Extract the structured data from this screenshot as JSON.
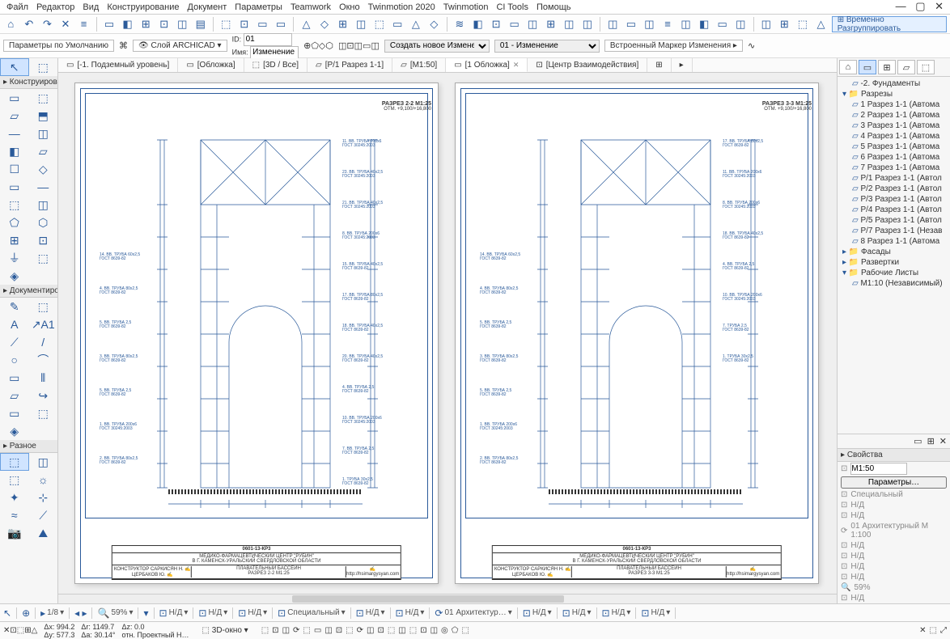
{
  "menu": [
    "Файл",
    "Редактор",
    "Вид",
    "Конструирование",
    "Документ",
    "Параметры",
    "Teamwork",
    "Окно",
    "Twinmotion 2020",
    "Twinmotion",
    "CI Tools",
    "Помощь"
  ],
  "toolbar1": {
    "icons": [
      "⌂",
      "↶",
      "↷",
      "✕",
      "≡",
      "▭",
      "◧",
      "⊞",
      "⊡",
      "◫",
      "▤",
      "⬚",
      "⊡",
      "▭",
      "▭",
      "△",
      "◇",
      "⊞",
      "◫",
      "⬚",
      "▭",
      "△",
      "◇",
      "≋",
      "◧",
      "⊡",
      "▭",
      "◫",
      "⊞",
      "◫",
      "◫",
      "◫",
      "▭",
      "◫",
      "≡",
      "◫",
      "◧",
      "▭",
      "◫",
      "◫",
      "⊞",
      "⬚",
      "△"
    ],
    "tempUngroup": "Временно Разгруппировать"
  },
  "infobox": {
    "defaults": "Параметры по Умолчанию",
    "layer_label": "Слой ARCHICAD",
    "id_label": "ID:",
    "id_value": "01",
    "name_label": "Имя:",
    "name_value": "Изменение",
    "shape_icons": [
      "⊕",
      "⬠",
      "◇",
      "⬡"
    ],
    "mid_icons": [
      "◫",
      "⊡",
      "◫",
      "▭",
      "◫"
    ],
    "change_select": "Создать новое Изменение",
    "change_value": "01 - Изменение",
    "marker_label": "Встроенный Маркер Изменения ▸",
    "tail_icon": "∿"
  },
  "toolbox": {
    "sections": [
      {
        "title": "",
        "cells": [
          "↖",
          "⬚"
        ]
      },
      {
        "title": "Конструирова",
        "cells": [
          "▭",
          "⬚",
          "▱",
          "⬒",
          "—",
          "◫",
          "◧",
          "▱",
          "☐",
          "◇",
          "▭",
          "—",
          "⬚",
          "◫",
          "⬠",
          "⬡",
          "⊞",
          "⊡",
          "⏚",
          "⬚",
          "◈",
          ""
        ]
      },
      {
        "title": "Документиро",
        "cells": [
          "✎",
          "⬚",
          "A",
          "↗A1",
          "⟋",
          "/",
          "○",
          "⌒",
          "▭",
          "⫴",
          "▱",
          "↪",
          "▭",
          "⬚",
          "◈",
          ""
        ]
      },
      {
        "title": "Разное",
        "cells": [
          "⬚",
          "◫",
          "⬚",
          "☼",
          "✦",
          "⊹",
          "≈",
          "⟋",
          "📷",
          "⛰"
        ]
      }
    ]
  },
  "tabs": [
    {
      "label": "[-1. Подземный уровень]",
      "icon": "▭"
    },
    {
      "label": "[Обложка]",
      "icon": "▭"
    },
    {
      "label": "[3D / Все]",
      "icon": "⬚"
    },
    {
      "label": "[Р/1 Разрез 1-1]",
      "icon": "▱"
    },
    {
      "label": "[М1:50]",
      "icon": "▱"
    },
    {
      "label": "[1 Обложка]",
      "icon": "▭",
      "active": true,
      "close": true
    },
    {
      "label": "[Центр Взаимодействия]",
      "icon": "⊡"
    }
  ],
  "tabsTail": [
    "⊞",
    "▸"
  ],
  "drawings": {
    "sheet1": {
      "title1": "РАЗРЕЗ 2-2 М1:25",
      "title2": "ОТМ. +9,100/+16,800",
      "titleblock": {
        "code": "0601-13-КР3",
        "line1": "МЕДИКО-ФАРМАЦЕВТИЧЕСКИЙ ЦЕНТР \"РУБИН\"",
        "line2": "В Г. КАМЕНСК-УРАЛЬСКИЙ СВЕРДЛОВСКОЙ ОБЛАСТИ",
        "line3": "ПЛАВАТЕЛЬНЫЙ БАССЕЙН",
        "line4": "РАЗРЕЗ 2-2 М1:25",
        "site": "http://hsimargysyan.com"
      },
      "labels_left": [
        "14. ВВ. ТРУБА 60x2,5 ГОСТ 8639-82",
        "4. ВВ. ТРУБА 80x2,5 ГОСТ 8639-82",
        "5. ВВ. ТРУБА 2,5 ГОСТ 8639-82",
        "3. ВВ. ТРУБА 80x2,5 ГОСТ 8639-82",
        "5. ВВ. ТРУБА 2,5 ГОСТ 8639-82",
        "1. ВВ. ТРУБА 200x6 ГОСТ 30245:2003",
        "2. ВВ. ТРУБА 80x2,5 ГОСТ 8639-82"
      ],
      "labels_right": [
        "11. ВВ. ТРУБА 200x6 ГОСТ 30245:2003",
        "23. ВВ. ТРУБА 40x2,5 ГОСТ 30245:2003",
        "21. ВВ. ТРУБА 40x2,5 ГОСТ 30245:2003",
        "8. ВВ. ТРУБА 200x6 ГОСТ 30245:2003",
        "15. ВВ. ТРУБА 40x2,5 ГОСТ 8639-82",
        "17. ВВ. ТРУБА 80x2,5 ГОСТ 8639-82",
        "18. ВВ. ТРУБА 40x2,5 ГОСТ 8639-82",
        "20. ВВ. ТРУБА 40x2,5 ГОСТ 8639-82",
        "4. ВВ. ТРУБА 2,5 ГОСТ 8639-82",
        "10. ВВ. ТРУБА 200x6 ГОСТ 30245:2003",
        "7. ВВ. ТРУБА 2,5 ГОСТ 8639-82",
        "1. ТРУБА 30x2,5 ГОСТ 8639-82"
      ]
    },
    "sheet2": {
      "title1": "РАЗРЕЗ 3-3 М1:25",
      "title2": "ОТМ. +9,100/+16,800",
      "titleblock": {
        "code": "0601-13-КР3",
        "line1": "МЕДИКО-ФАРМАЦЕВТИЧЕСКИЙ ЦЕНТР \"РУБИН\"",
        "line2": "В Г. КАМЕНСК-УРАЛЬСКИЙ СВЕРДЛОВСКОЙ ОБЛАСТИ",
        "line3": "ПЛАВАТЕЛЬНЫЙ БАССЕЙН",
        "line4": "РАЗРЕЗ 3-3 М1:25",
        "site": "http://hsimargysyan.com"
      },
      "labels_left": [
        "14. ВВ. ТРУБА 60x2,5 ГОСТ 8639-82",
        "4. ВВ. ТРУБА 80x2,5 ГОСТ 8639-82",
        "5. ВВ. ТРУБА 2,5 ГОСТ 8639-82",
        "3. ВВ. ТРУБА 80x2,5 ГОСТ 8639-82",
        "5. ВВ. ТРУБА 2,5 ГОСТ 8639-82",
        "1. ВВ. ТРУБА 200x6 ГОСТ 30245:2003",
        "2. ВВ. ТРУБА 80x2,5 ГОСТ 8639-82"
      ],
      "labels_right": [
        "17. ВВ. ТРУБА 80x2,5 ГОСТ 8639-82",
        "11. ВВ. ТРУБА 200x6 ГОСТ 30245:2003",
        "8. ВВ. ТРУБА 200x6 ГОСТ 30245:2003",
        "18. ВВ. ТРУБА 40x2,5 ГОСТ 8639-82",
        "4. ВВ. ТРУБА 2,5 ГОСТ 8639-82",
        "10. ВВ. ТРУБА 200x6 ГОСТ 30245:2003",
        "7. ТРУБА 2,5 ГОСТ 8639-82",
        "1. ТРУБА 30x2,5 ГОСТ 8639-82"
      ]
    },
    "colors": {
      "line": "#2a5a9a",
      "frame": "#2a5a9a",
      "text": "#2a5a9a",
      "hatch": "#333"
    }
  },
  "navigator": {
    "tabIcons": [
      "⌂",
      "▭",
      "⊞",
      "▱",
      "⬚"
    ],
    "tree": [
      {
        "t": "-2. Фундаменты",
        "lvl": 1
      },
      {
        "t": "Разрезы",
        "lvl": 0,
        "fold": true
      },
      {
        "t": "1 Разрез 1-1 (Автома",
        "lvl": 1
      },
      {
        "t": "2 Разрез 1-1 (Автома",
        "lvl": 1
      },
      {
        "t": "3 Разрез 1-1 (Автома",
        "lvl": 1
      },
      {
        "t": "4 Разрез 1-1 (Автома",
        "lvl": 1
      },
      {
        "t": "5 Разрез 1-1 (Автома",
        "lvl": 1
      },
      {
        "t": "6 Разрез 1-1 (Автома",
        "lvl": 1
      },
      {
        "t": "7 Разрез 1-1 (Автома",
        "lvl": 1
      },
      {
        "t": "Р/1 Разрез 1-1 (Автол",
        "lvl": 1
      },
      {
        "t": "Р/2 Разрез 1-1 (Автол",
        "lvl": 1
      },
      {
        "t": "Р/3 Разрез 1-1 (Автол",
        "lvl": 1
      },
      {
        "t": "Р/4 Разрез 1-1 (Автол",
        "lvl": 1
      },
      {
        "t": "Р/5 Разрез 1-1 (Автол",
        "lvl": 1
      },
      {
        "t": "Р/7 Разрез 1-1 (Незав",
        "lvl": 1
      },
      {
        "t": "8 Разрез 1-1 (Автома",
        "lvl": 1
      },
      {
        "t": "Фасады",
        "lvl": 0
      },
      {
        "t": "Развертки",
        "lvl": 0
      },
      {
        "t": "Рабочие Листы",
        "lvl": 0,
        "fold": true
      },
      {
        "t": "М1:10 (Независимый)",
        "lvl": 1
      }
    ],
    "treeFooterIcons": [
      "▭",
      "⊞",
      "✕"
    ],
    "props": {
      "title": "Свойства",
      "scale_value": "М1:50",
      "paramsBtn": "Параметры…",
      "rows": [
        {
          "icon": "⊡",
          "t": "Специальный"
        },
        {
          "icon": "⊡",
          "t": "Н/Д"
        },
        {
          "icon": "⊡",
          "t": "Н/Д"
        },
        {
          "icon": "⟳",
          "t": "01 Архитектурный М 1:100"
        },
        {
          "icon": "⊡",
          "t": "Н/Д"
        },
        {
          "icon": "⊡",
          "t": "Н/Д"
        },
        {
          "icon": "⊡",
          "t": "Н/Д"
        },
        {
          "icon": "⊡",
          "t": "Н/Д"
        },
        {
          "icon": "🔍",
          "t": "59%"
        },
        {
          "icon": "⊡",
          "t": "Н/Д"
        }
      ]
    }
  },
  "statusbar": {
    "left": [
      {
        "icon": "↖",
        "t": ""
      },
      {
        "icon": "⊕",
        "t": ""
      },
      {
        "icon": "▸",
        "t": "1/8"
      },
      {
        "icon": "◂ ▸",
        "t": ""
      },
      {
        "icon": "🔍",
        "t": "59%"
      },
      {
        "icon": "▾",
        "t": ""
      },
      {
        "icon": "⊡",
        "t": "Н/Д"
      },
      {
        "icon": "⊡",
        "t": "Н/Д"
      },
      {
        "icon": "⊡",
        "t": "Н/Д"
      },
      {
        "icon": "⊡",
        "t": "Специальный"
      },
      {
        "icon": "⊡",
        "t": "Н/Д"
      },
      {
        "icon": "⊡",
        "t": "Н/Д"
      },
      {
        "icon": "⟳",
        "t": "01 Архитектур…"
      },
      {
        "icon": "⊡",
        "t": "Н/Д"
      },
      {
        "icon": "⊡",
        "t": "Н/Д"
      },
      {
        "icon": "⊡",
        "t": "Н/Д"
      },
      {
        "icon": "⊡",
        "t": "Н/Д"
      }
    ]
  },
  "coordbar": {
    "btns": [
      "✕",
      "⊡",
      "⬚",
      "⊞",
      "△"
    ],
    "dx": "Δx: 994.2",
    "dy": "Δy: 577.3",
    "dr": "Δr: 1149.7",
    "da": "Δa: 30.14°",
    "dz": "Δz: 0.0",
    "rel": "отн. Проектный Н…",
    "view3d": "3D-окно",
    "right_icons": [
      "⬚",
      "⊡",
      "◫",
      "⟳",
      "⬚",
      "▭",
      "◫",
      "⊡",
      "⬚",
      "⟳",
      "◫",
      "⊡",
      "⬚",
      "◫",
      "⬚",
      "⊡",
      "◫",
      "◎",
      "⬠",
      "⬚"
    ],
    "far_right": [
      "✕",
      "⬚",
      "⤢"
    ]
  }
}
